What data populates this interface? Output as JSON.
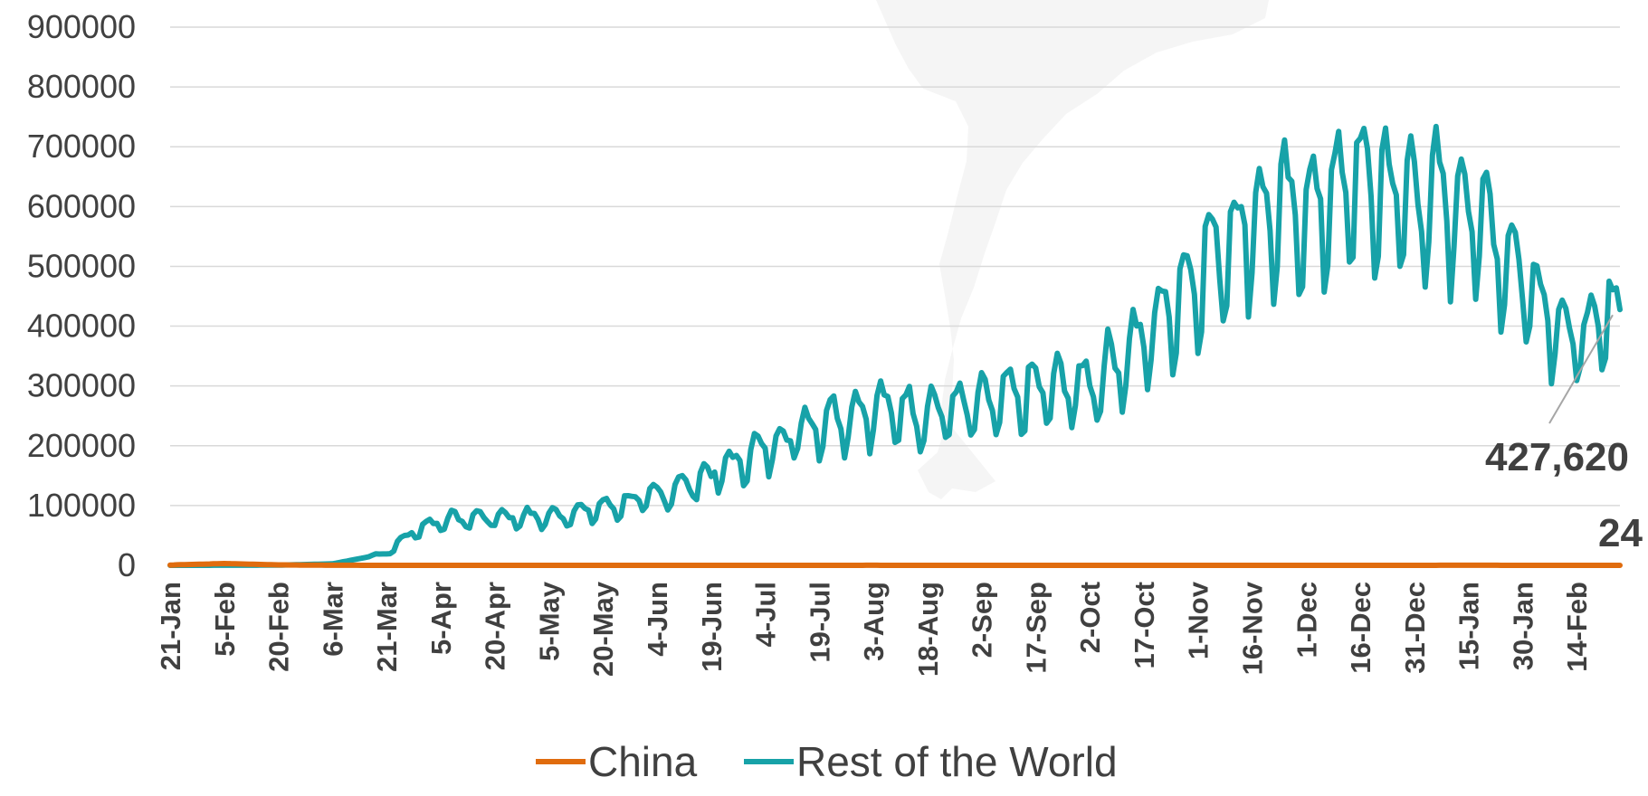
{
  "chart_data": {
    "type": "line",
    "x_axis": {
      "tick_labels": [
        "21-Jan",
        "5-Feb",
        "20-Feb",
        "6-Mar",
        "21-Mar",
        "5-Apr",
        "20-Apr",
        "5-May",
        "20-May",
        "4-Jun",
        "19-Jun",
        "4-Jul",
        "19-Jul",
        "3-Aug",
        "18-Aug",
        "2-Sep",
        "17-Sep",
        "2-Oct",
        "17-Oct",
        "1-Nov",
        "16-Nov",
        "1-Dec",
        "16-Dec",
        "31-Dec",
        "15-Jan",
        "30-Jan",
        "14-Feb"
      ],
      "tick_interval_days": 15,
      "start": "21-Jan",
      "end": "26-Feb"
    },
    "y_axis": {
      "ylim": [
        0,
        900000
      ],
      "ticks": [
        0,
        100000,
        200000,
        300000,
        400000,
        500000,
        600000,
        700000,
        800000,
        900000
      ],
      "tick_labels": [
        "0",
        "100000",
        "200000",
        "300000",
        "400000",
        "500000",
        "600000",
        "700000",
        "800000",
        "900000"
      ],
      "gridlines": true
    },
    "series": [
      {
        "name": "China",
        "color": "#E06C0E",
        "points": [
          [
            "21-Jan",
            500
          ],
          [
            "5-Feb",
            3000
          ],
          [
            "20-Feb",
            800
          ],
          [
            "6-Mar",
            100
          ],
          [
            "21-Mar",
            50
          ],
          [
            "5-Apr",
            30
          ],
          [
            "20-Apr",
            20
          ],
          [
            "5-May",
            5
          ],
          [
            "20-May",
            10
          ],
          [
            "4-Jun",
            10
          ],
          [
            "19-Jun",
            20
          ],
          [
            "4-Jul",
            10
          ],
          [
            "19-Jul",
            50
          ],
          [
            "3-Aug",
            80
          ],
          [
            "18-Aug",
            20
          ],
          [
            "2-Sep",
            10
          ],
          [
            "17-Sep",
            15
          ],
          [
            "2-Oct",
            20
          ],
          [
            "17-Oct",
            20
          ],
          [
            "1-Nov",
            20
          ],
          [
            "16-Nov",
            20
          ],
          [
            "1-Dec",
            15
          ],
          [
            "16-Dec",
            25
          ],
          [
            "31-Dec",
            30
          ],
          [
            "15-Jan",
            140
          ],
          [
            "30-Jan",
            30
          ],
          [
            "14-Feb",
            10
          ],
          [
            "26-Feb",
            24
          ]
        ],
        "end_label": "24"
      },
      {
        "name": "Rest of the World",
        "color": "#17A2A8",
        "points": [
          [
            "21-Jan",
            0
          ],
          [
            "5-Feb",
            100
          ],
          [
            "20-Feb",
            300
          ],
          [
            "6-Mar",
            2500
          ],
          [
            "21-Mar",
            20000
          ],
          [
            "28-Mar",
            55000
          ],
          [
            "5-Apr",
            75000
          ],
          [
            "20-Apr",
            80000
          ],
          [
            "5-May",
            80000
          ],
          [
            "20-May",
            95000
          ],
          [
            "4-Jun",
            115000
          ],
          [
            "19-Jun",
            150000
          ],
          [
            "4-Jul",
            195000
          ],
          [
            "19-Jul",
            240000
          ],
          [
            "3-Aug",
            260000
          ],
          [
            "18-Aug",
            255000
          ],
          [
            "2-Sep",
            265000
          ],
          [
            "17-Sep",
            290000
          ],
          [
            "2-Oct",
            300000
          ],
          [
            "17-Oct",
            375000
          ],
          [
            "1-Nov",
            490000
          ],
          [
            "16-Nov",
            580000
          ],
          [
            "1-Dec",
            590000
          ],
          [
            "16-Dec",
            640000
          ],
          [
            "31-Dec",
            610000
          ],
          [
            "15-Jan",
            600000
          ],
          [
            "30-Jan",
            480000
          ],
          [
            "14-Feb",
            370000
          ],
          [
            "26-Feb",
            427620
          ]
        ],
        "end_label": "427,620"
      }
    ],
    "legend": {
      "position": "bottom",
      "entries": [
        "China",
        "Rest of the World"
      ]
    }
  }
}
